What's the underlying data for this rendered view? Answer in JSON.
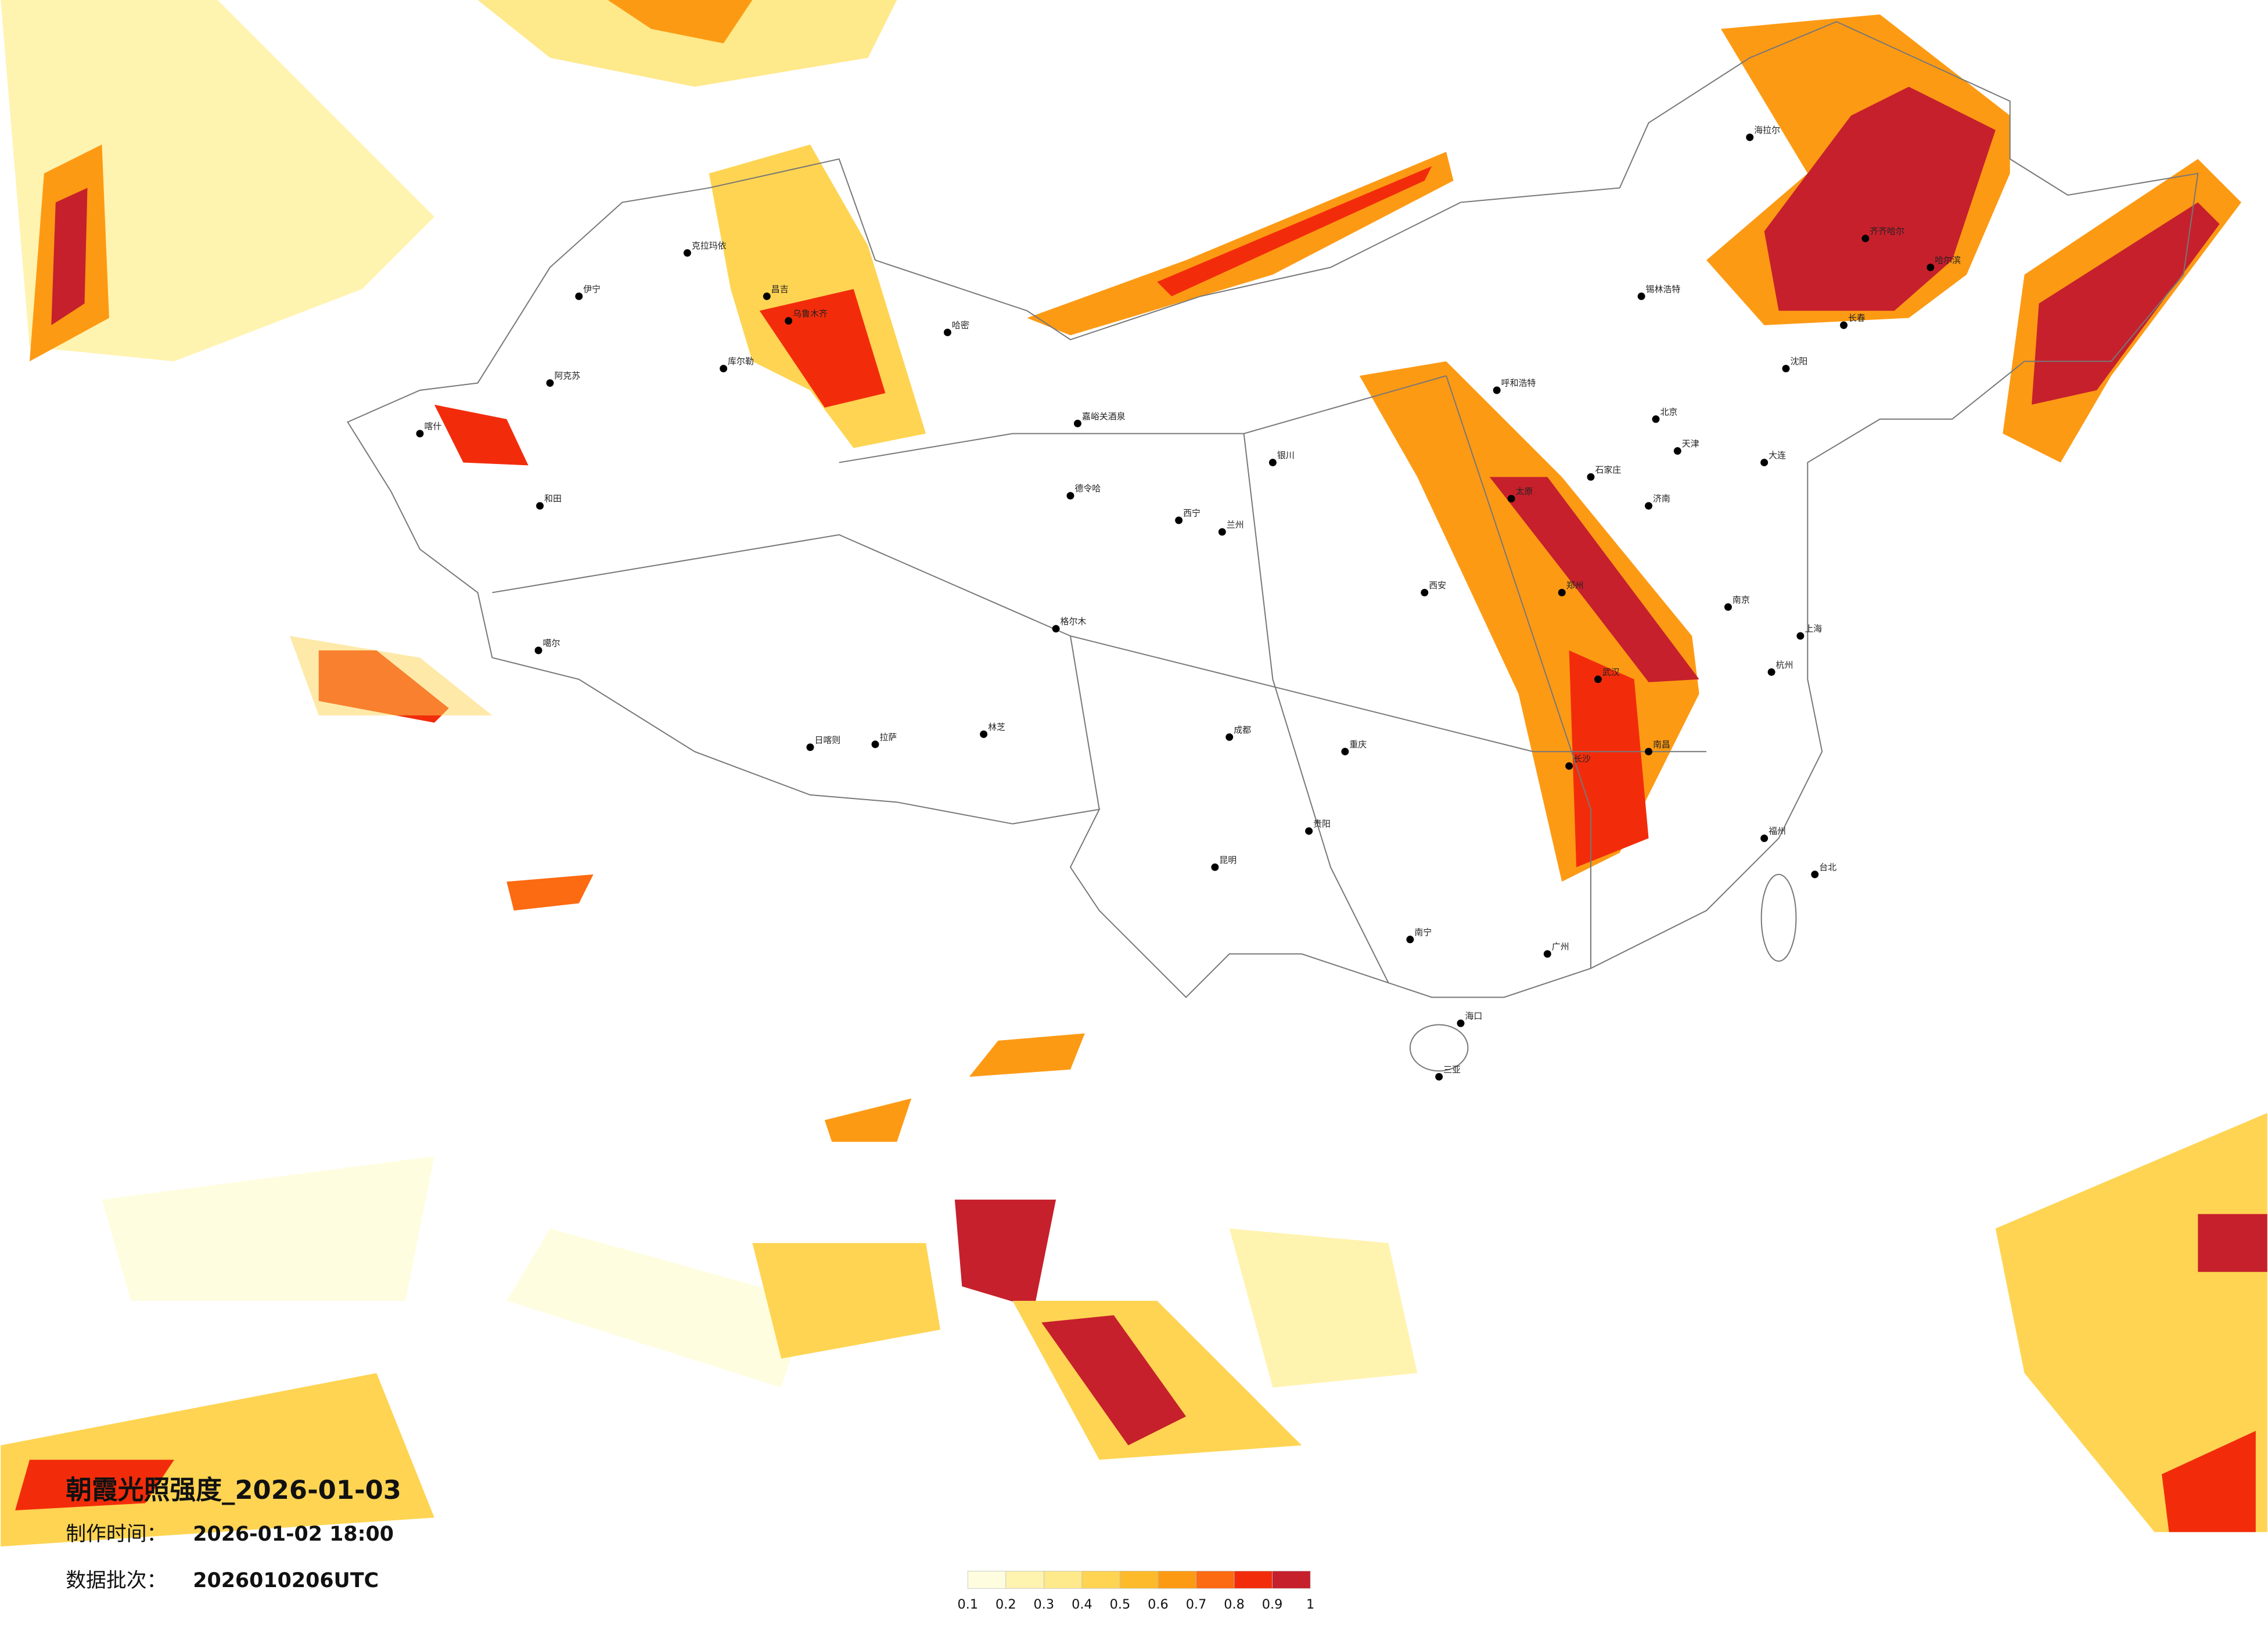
{
  "title": "朝霞光照强度_2026-01-03",
  "made_label": "制作时间：",
  "made_time": "2026-01-02 18:00",
  "batch_label": "数据批次：",
  "batch": "2026010206UTC",
  "colorbar": {
    "ticks": [
      0.1,
      0.2,
      0.3,
      0.4,
      0.5,
      0.6,
      0.7,
      0.8,
      0.9,
      1
    ],
    "colors": [
      "#fffde0",
      "#fff3b0",
      "#fee98b",
      "#fed452",
      "#fdbb2b",
      "#fd9a14",
      "#fc6a11",
      "#f22c0b",
      "#c6202c"
    ]
  },
  "cities": [
    "克拉玛依",
    "伊宁",
    "昌吉",
    "乌鲁木齐",
    "库尔勒",
    "阿克苏",
    "喀什",
    "和田",
    "哈密",
    "嘉峪关酒泉",
    "德令哈",
    "格尔木",
    "拉萨",
    "日喀则",
    "林芝",
    "噶尔",
    "海拉尔",
    "齐齐哈尔",
    "哈尔滨",
    "锡林浩特",
    "呼和浩特",
    "北京",
    "天津",
    "石家庄",
    "太原",
    "郑州",
    "济南",
    "西安",
    "兰州",
    "西宁",
    "银川",
    "成都",
    "重庆",
    "武汉",
    "长沙",
    "南京",
    "上海",
    "杭州",
    "南昌",
    "福州",
    "贵阳",
    "昆明",
    "南宁",
    "广州",
    "海口",
    "台北",
    "大连",
    "沈阳",
    "长春",
    "三亚"
  ]
}
